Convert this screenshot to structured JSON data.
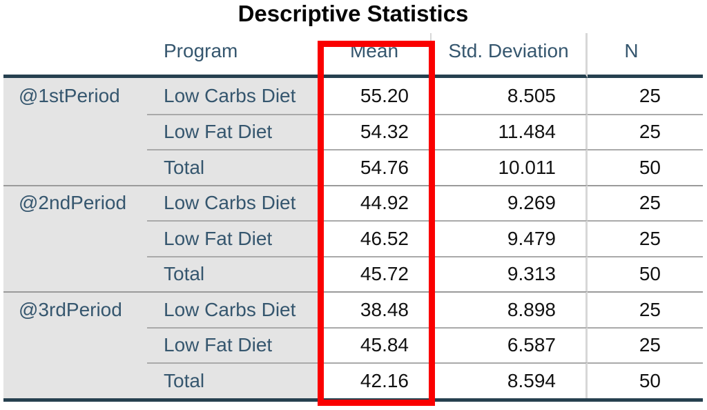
{
  "title": "Descriptive Statistics",
  "annotation": {
    "highlighted_column": "Mean",
    "highlight_color": "#fa0000"
  },
  "colors": {
    "heavy_rule": "#26404f",
    "thin_rule": "#a9a9a9",
    "column_rule": "#d7d7d7",
    "stub_background": "#e4e4e4",
    "stub_text": "#35566e",
    "data_text": "#121212",
    "highlight": "#fa0000"
  },
  "table": {
    "header": {
      "blank": "",
      "program": "Program",
      "mean": "Mean",
      "std": "Std. Deviation",
      "n": "N"
    },
    "groups": [
      {
        "period": "@1stPeriod",
        "rows": [
          {
            "program": "Low Carbs Diet",
            "mean": "55.20",
            "std": "8.505",
            "n": "25"
          },
          {
            "program": "Low Fat Diet",
            "mean": "54.32",
            "std": "11.484",
            "n": "25"
          },
          {
            "program": "Total",
            "mean": "54.76",
            "std": "10.011",
            "n": "50"
          }
        ]
      },
      {
        "period": "@2ndPeriod",
        "rows": [
          {
            "program": "Low Carbs Diet",
            "mean": "44.92",
            "std": "9.269",
            "n": "25"
          },
          {
            "program": "Low Fat Diet",
            "mean": "46.52",
            "std": "9.479",
            "n": "25"
          },
          {
            "program": "Total",
            "mean": "45.72",
            "std": "9.313",
            "n": "50"
          }
        ]
      },
      {
        "period": "@3rdPeriod",
        "rows": [
          {
            "program": "Low Carbs Diet",
            "mean": "38.48",
            "std": "8.898",
            "n": "25"
          },
          {
            "program": "Low Fat Diet",
            "mean": "45.84",
            "std": "6.587",
            "n": "25"
          },
          {
            "program": "Total",
            "mean": "42.16",
            "std": "8.594",
            "n": "50"
          }
        ]
      }
    ]
  },
  "chart_data": {
    "type": "table",
    "title": "Descriptive Statistics",
    "columns": [
      "Period",
      "Program",
      "Mean",
      "Std. Deviation",
      "N"
    ],
    "rows": [
      [
        "@1stPeriod",
        "Low Carbs Diet",
        55.2,
        8.505,
        25
      ],
      [
        "@1stPeriod",
        "Low Fat Diet",
        54.32,
        11.484,
        25
      ],
      [
        "@1stPeriod",
        "Total",
        54.76,
        10.011,
        50
      ],
      [
        "@2ndPeriod",
        "Low Carbs Diet",
        44.92,
        9.269,
        25
      ],
      [
        "@2ndPeriod",
        "Low Fat Diet",
        46.52,
        9.479,
        25
      ],
      [
        "@2ndPeriod",
        "Total",
        45.72,
        9.313,
        50
      ],
      [
        "@3rdPeriod",
        "Low Carbs Diet",
        38.48,
        8.898,
        25
      ],
      [
        "@3rdPeriod",
        "Low Fat Diet",
        45.84,
        6.587,
        25
      ],
      [
        "@3rdPeriod",
        "Total",
        42.16,
        8.594,
        50
      ]
    ],
    "annotations": [
      "Red rectangle outlines the Mean column"
    ]
  }
}
